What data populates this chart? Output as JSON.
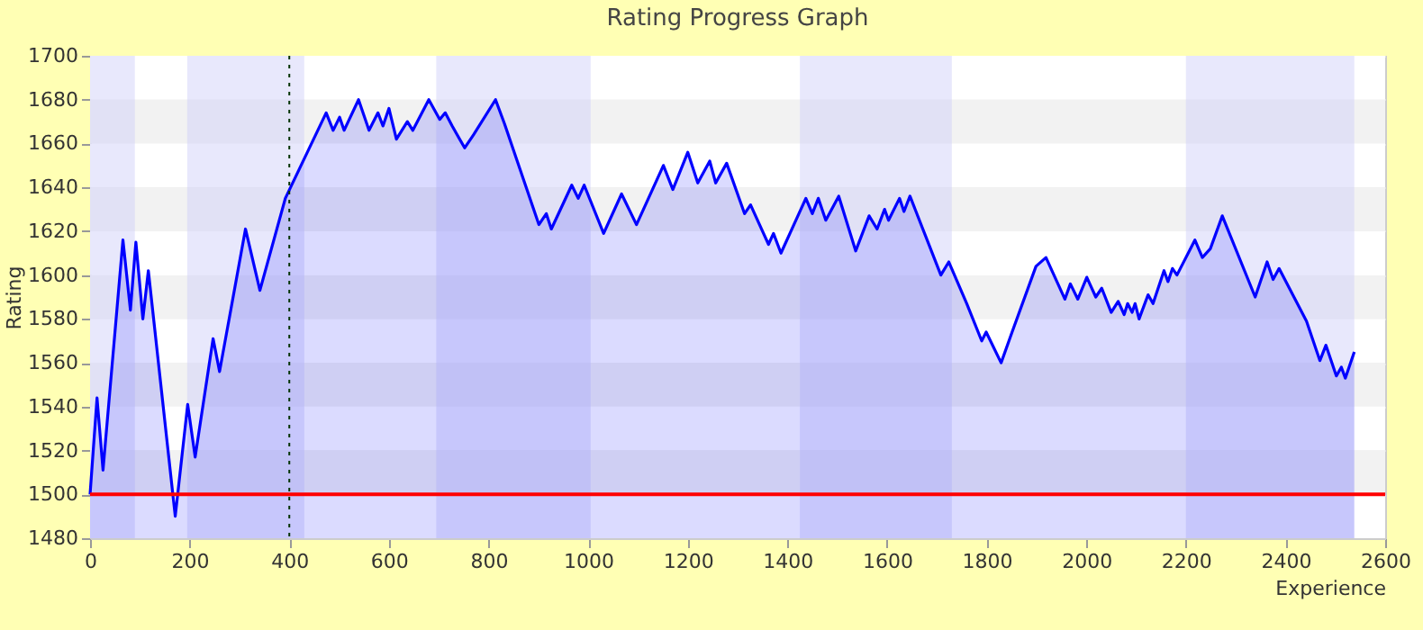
{
  "chart_data": {
    "type": "area",
    "title": "Rating Progress Graph",
    "xlabel": "Experience",
    "ylabel": "Rating",
    "xlim": [
      0,
      2600
    ],
    "xticks": [
      0,
      200,
      400,
      600,
      800,
      1000,
      1200,
      1400,
      1600,
      1800,
      2000,
      2200,
      2400,
      2600
    ],
    "ylim": [
      1480,
      1700
    ],
    "yticks": [
      1480,
      1500,
      1520,
      1540,
      1560,
      1580,
      1600,
      1620,
      1640,
      1660,
      1680,
      1700
    ],
    "grid": "y",
    "x": [
      0,
      14,
      26,
      66,
      81,
      92,
      106,
      117,
      171,
      196,
      211,
      247,
      260,
      312,
      341,
      392,
      474,
      488,
      501,
      510,
      539,
      560,
      578,
      588,
      600,
      615,
      637,
      648,
      680,
      702,
      713,
      727,
      752,
      770,
      814,
      832,
      901,
      916,
      926,
      967,
      980,
      992,
      1031,
      1067,
      1097,
      1151,
      1170,
      1200,
      1220,
      1244,
      1256,
      1278,
      1314,
      1326,
      1362,
      1372,
      1387,
      1437,
      1450,
      1462,
      1477,
      1503,
      1537,
      1564,
      1580,
      1595,
      1603,
      1625,
      1634,
      1646,
      1708,
      1724,
      1760,
      1790,
      1799,
      1829,
      1851,
      1899,
      1919,
      1957,
      1968,
      1983,
      2001,
      2019,
      2031,
      2050,
      2064,
      2076,
      2083,
      2092,
      2098,
      2106,
      2124,
      2134,
      2156,
      2164,
      2173,
      2182,
      2218,
      2233,
      2249,
      2273,
      2339,
      2363,
      2375,
      2387,
      2442,
      2469,
      2481,
      2502,
      2512,
      2520,
      2538
    ],
    "series": [
      {
        "color": "#0000ff",
        "values": [
          1500,
          1544,
          1511,
          1616,
          1584,
          1615,
          1580,
          1602,
          1490,
          1541,
          1517,
          1571,
          1556,
          1621,
          1593,
          1635,
          1674,
          1666,
          1672,
          1666,
          1680,
          1666,
          1674,
          1668,
          1676,
          1662,
          1670,
          1666,
          1680,
          1671,
          1674,
          1668,
          1658,
          1664,
          1680,
          1669,
          1623,
          1628,
          1621,
          1641,
          1635,
          1641,
          1619,
          1637,
          1623,
          1650,
          1639,
          1656,
          1642,
          1652,
          1642,
          1651,
          1628,
          1632,
          1614,
          1619,
          1610,
          1635,
          1628,
          1635,
          1625,
          1636,
          1611,
          1627,
          1621,
          1630,
          1625,
          1635,
          1629,
          1636,
          1600,
          1606,
          1587,
          1570,
          1574,
          1560,
          1574,
          1604,
          1608,
          1589,
          1596,
          1589,
          1599,
          1590,
          1594,
          1583,
          1588,
          1582,
          1587,
          1583,
          1587,
          1580,
          1591,
          1587,
          1602,
          1597,
          1603,
          1600,
          1616,
          1608,
          1612,
          1627,
          1590,
          1606,
          1598,
          1603,
          1579,
          1561,
          1568,
          1554,
          1558,
          1553,
          1565
        ]
      }
    ],
    "bands": [
      {
        "axis": "x",
        "from": 0,
        "to": 90,
        "color": "#ccccf8"
      },
      {
        "axis": "x",
        "from": 195,
        "to": 430,
        "color": "#ccccf8"
      },
      {
        "axis": "x",
        "from": 695,
        "to": 1005,
        "color": "#ccccf8"
      },
      {
        "axis": "x",
        "from": 1425,
        "to": 1730,
        "color": "#ccccf8"
      },
      {
        "axis": "x",
        "from": 2200,
        "to": 2538,
        "color": "#ccccf8"
      }
    ],
    "ref_lines": [
      {
        "axis": "y",
        "value": 1500,
        "color": "#ff0000",
        "line_style": "solid"
      },
      {
        "axis": "x",
        "value": 400,
        "color": "#003300",
        "line_style": "dotted"
      }
    ]
  }
}
